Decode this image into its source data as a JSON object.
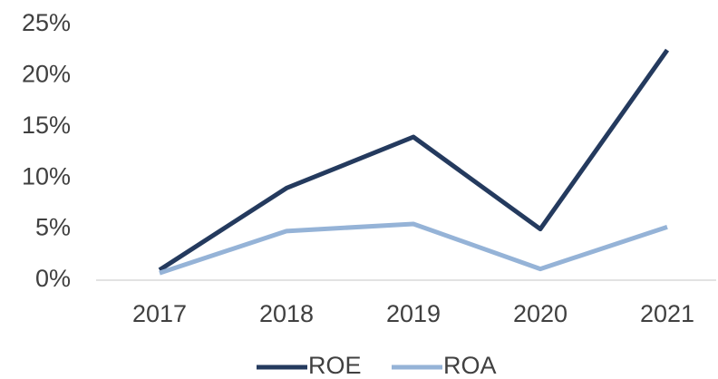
{
  "chart_data": {
    "type": "line",
    "categories": [
      "2017",
      "2018",
      "2019",
      "2020",
      "2021"
    ],
    "series": [
      {
        "name": "ROE",
        "color": "#243a5e",
        "values": [
          1,
          9,
          14,
          5,
          22.5
        ]
      },
      {
        "name": "ROA",
        "color": "#95b3d7",
        "values": [
          0.7,
          4.8,
          5.5,
          1.1,
          5.2
        ]
      }
    ],
    "ylim": [
      0,
      25
    ],
    "yticks": [
      {
        "value": 0,
        "label": "0%"
      },
      {
        "value": 5,
        "label": "5%"
      },
      {
        "value": 10,
        "label": "10%"
      },
      {
        "value": 15,
        "label": "15%"
      },
      {
        "value": 20,
        "label": "20%"
      },
      {
        "value": 25,
        "label": "25%"
      }
    ],
    "grid": false,
    "legend": "bottom"
  }
}
